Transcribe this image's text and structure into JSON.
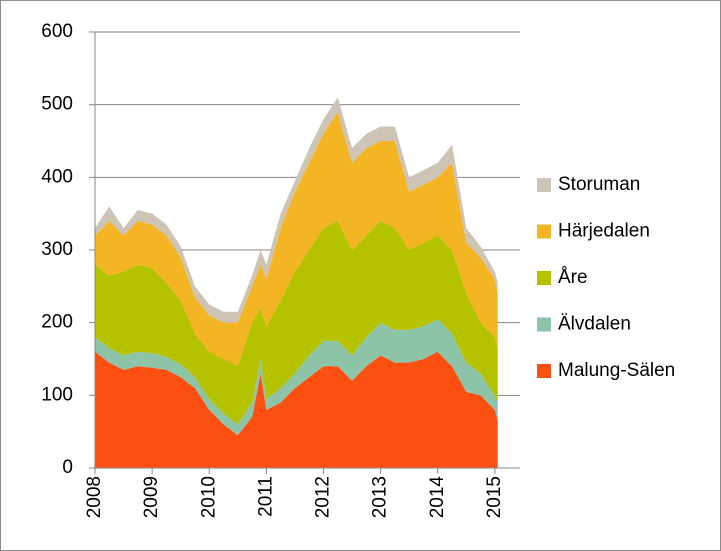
{
  "chart_data": {
    "type": "stacked-area",
    "x": [
      2008.0,
      2008.25,
      2008.5,
      2008.75,
      2009.0,
      2009.25,
      2009.5,
      2009.75,
      2010.0,
      2010.25,
      2010.5,
      2010.75,
      2010.9,
      2011.0,
      2011.25,
      2011.5,
      2011.75,
      2012.0,
      2012.25,
      2012.5,
      2012.75,
      2013.0,
      2013.25,
      2013.5,
      2013.75,
      2014.0,
      2014.25,
      2014.5,
      2014.75,
      2015.0,
      2015.05
    ],
    "series": [
      {
        "name": "Malung-Sälen",
        "color": "#fc4f12",
        "values": [
          160,
          145,
          135,
          140,
          138,
          135,
          125,
          110,
          80,
          60,
          45,
          70,
          130,
          80,
          90,
          110,
          125,
          140,
          140,
          120,
          140,
          155,
          145,
          145,
          150,
          160,
          140,
          105,
          100,
          80,
          65
        ]
      },
      {
        "name": "Älvdalen",
        "color": "#8dc4a8",
        "values": [
          20,
          20,
          20,
          20,
          20,
          18,
          18,
          15,
          15,
          15,
          15,
          20,
          20,
          15,
          20,
          20,
          30,
          35,
          35,
          35,
          40,
          45,
          45,
          45,
          45,
          45,
          45,
          40,
          30,
          20,
          25
        ]
      },
      {
        "name": "Åre",
        "color": "#b5c200",
        "values": [
          100,
          100,
          115,
          120,
          117,
          102,
          87,
          60,
          65,
          75,
          80,
          110,
          70,
          100,
          120,
          140,
          145,
          155,
          165,
          145,
          140,
          140,
          140,
          110,
          115,
          115,
          115,
          95,
          70,
          80,
          75
        ]
      },
      {
        "name": "Härjedalen",
        "color": "#f4b524",
        "values": [
          40,
          75,
          50,
          60,
          60,
          65,
          60,
          50,
          50,
          50,
          60,
          50,
          60,
          65,
          100,
          110,
          120,
          130,
          150,
          120,
          120,
          110,
          120,
          80,
          80,
          80,
          120,
          70,
          90,
          80,
          75
        ]
      },
      {
        "name": "Storuman",
        "color": "#cdc4b5",
        "values": [
          10,
          20,
          10,
          15,
          15,
          15,
          15,
          15,
          15,
          15,
          15,
          15,
          20,
          20,
          20,
          15,
          20,
          20,
          20,
          20,
          20,
          20,
          20,
          20,
          20,
          20,
          25,
          20,
          15,
          10,
          15
        ]
      }
    ],
    "xlim": [
      2008,
      2015.44
    ],
    "xticks": [
      2008,
      2009,
      2010,
      2011,
      2012,
      2013,
      2014,
      2015
    ],
    "ylim": [
      0,
      600
    ],
    "yticks": [
      0,
      100,
      200,
      300,
      400,
      500,
      600
    ],
    "grid": true,
    "legend": "right"
  }
}
